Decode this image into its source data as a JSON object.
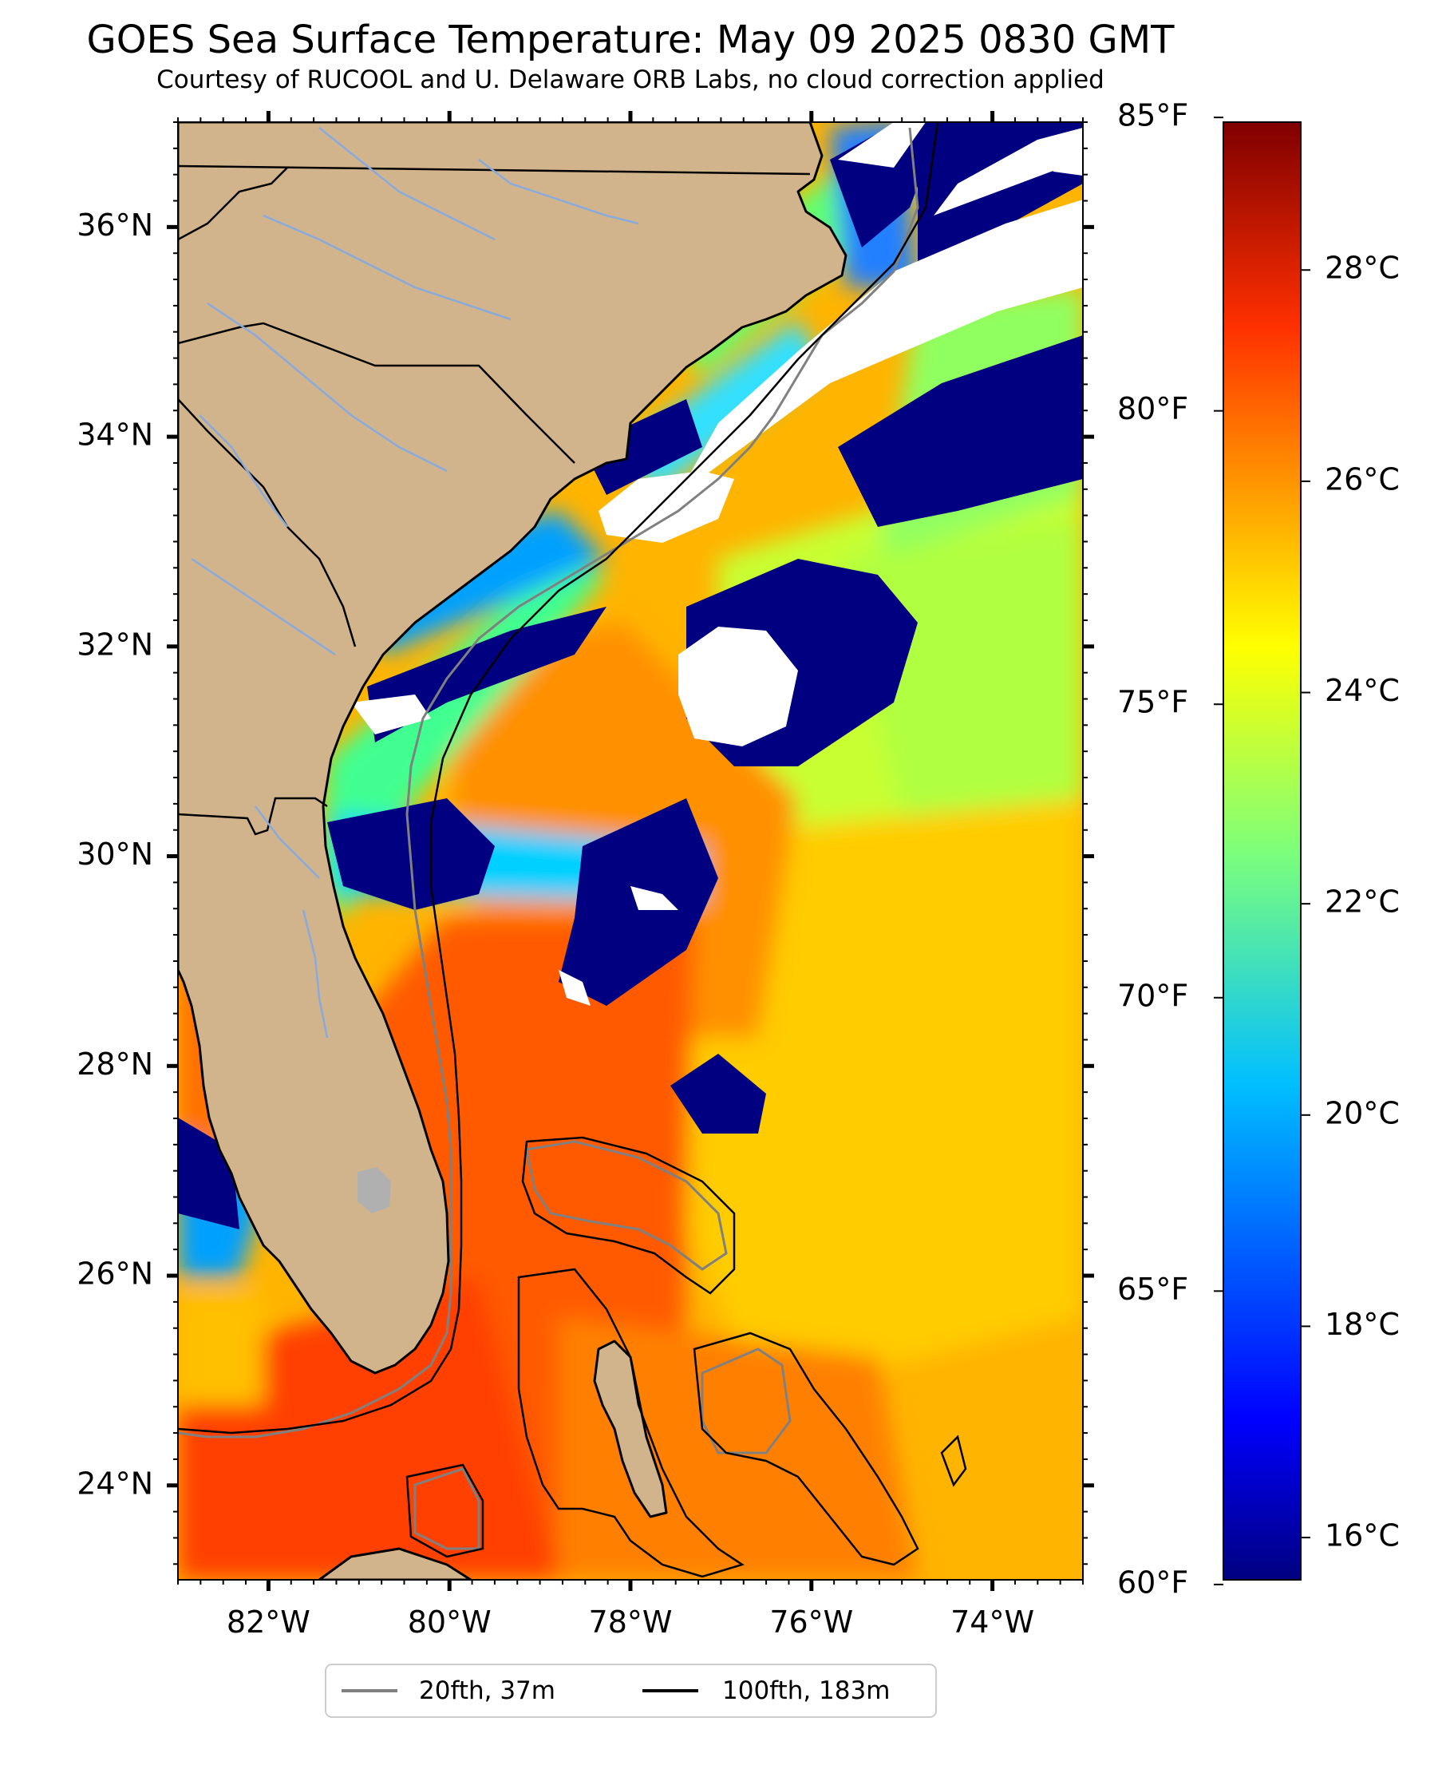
{
  "title": "GOES Sea Surface Temperature: May 09 2025 0830 GMT",
  "subtitle": "Courtesy of RUCOOL and U. Delaware ORB Labs, no cloud correction applied",
  "map": {
    "lon_range": [
      -83,
      -73
    ],
    "lat_range": [
      23.1,
      37
    ],
    "lat_ticks": [
      {
        "value": 36,
        "label": "36°N"
      },
      {
        "value": 34,
        "label": "34°N"
      },
      {
        "value": 32,
        "label": "32°N"
      },
      {
        "value": 30,
        "label": "30°N"
      },
      {
        "value": 28,
        "label": "28°N"
      },
      {
        "value": 26,
        "label": "26°N"
      },
      {
        "value": 24,
        "label": "24°N"
      }
    ],
    "lon_ticks": [
      {
        "value": -82,
        "label": "82°W"
      },
      {
        "value": -80,
        "label": "80°W"
      },
      {
        "value": -78,
        "label": "78°W"
      },
      {
        "value": -76,
        "label": "76°W"
      },
      {
        "value": -74,
        "label": "74°W"
      }
    ],
    "colors": {
      "land": "#d2b48c",
      "cloud_mask": "#ffffff",
      "cold_mask": "#000080",
      "lake": "#b0b0b0",
      "river": "#88aadd"
    }
  },
  "colorbar": {
    "colormap": "jet",
    "range_c": [
      15.6,
      29.4
    ],
    "celsius_ticks": [
      {
        "value": 16,
        "label": "16°C"
      },
      {
        "value": 18,
        "label": "18°C"
      },
      {
        "value": 20,
        "label": "20°C"
      },
      {
        "value": 22,
        "label": "22°C"
      },
      {
        "value": 24,
        "label": "24°C"
      },
      {
        "value": 26,
        "label": "26°C"
      },
      {
        "value": 28,
        "label": "28°C"
      }
    ],
    "fahrenheit_ticks": [
      {
        "value": 60,
        "label": "60°F"
      },
      {
        "value": 65,
        "label": "65°F"
      },
      {
        "value": 70,
        "label": "70°F"
      },
      {
        "value": 75,
        "label": "75°F"
      },
      {
        "value": 80,
        "label": "80°F"
      },
      {
        "value": 85,
        "label": "85°F"
      }
    ]
  },
  "legend": {
    "items": [
      {
        "label": "20fth, 37m",
        "color": "#808080"
      },
      {
        "label": "100fth, 183m",
        "color": "#000000"
      }
    ]
  }
}
